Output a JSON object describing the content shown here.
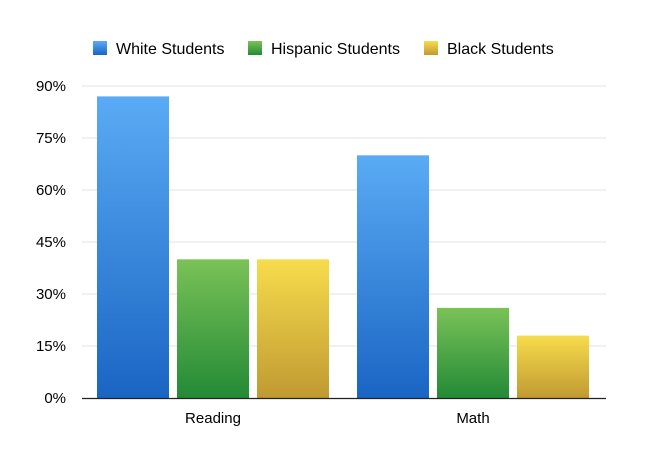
{
  "chart_data": {
    "type": "bar",
    "title": "",
    "xlabel": "",
    "ylabel": "",
    "categories": [
      "Reading",
      "Math"
    ],
    "series": [
      {
        "name": "White Students",
        "values": [
          87,
          70
        ],
        "color_top": "#5aabf5",
        "color_bottom": "#1a65c3"
      },
      {
        "name": "Hispanic Students",
        "values": [
          40,
          26
        ],
        "color_top": "#7ac257",
        "color_bottom": "#238a36"
      },
      {
        "name": "Black Students",
        "values": [
          40,
          18
        ],
        "color_top": "#f7dc4c",
        "color_bottom": "#c09a32"
      }
    ],
    "ylim": [
      0,
      90
    ],
    "yticks": [
      0,
      15,
      30,
      45,
      60,
      75,
      90
    ],
    "ytick_labels": [
      "0%",
      "15%",
      "30%",
      "45%",
      "60%",
      "75%",
      "90%"
    ],
    "grid": true,
    "legend_position": "top-left"
  }
}
